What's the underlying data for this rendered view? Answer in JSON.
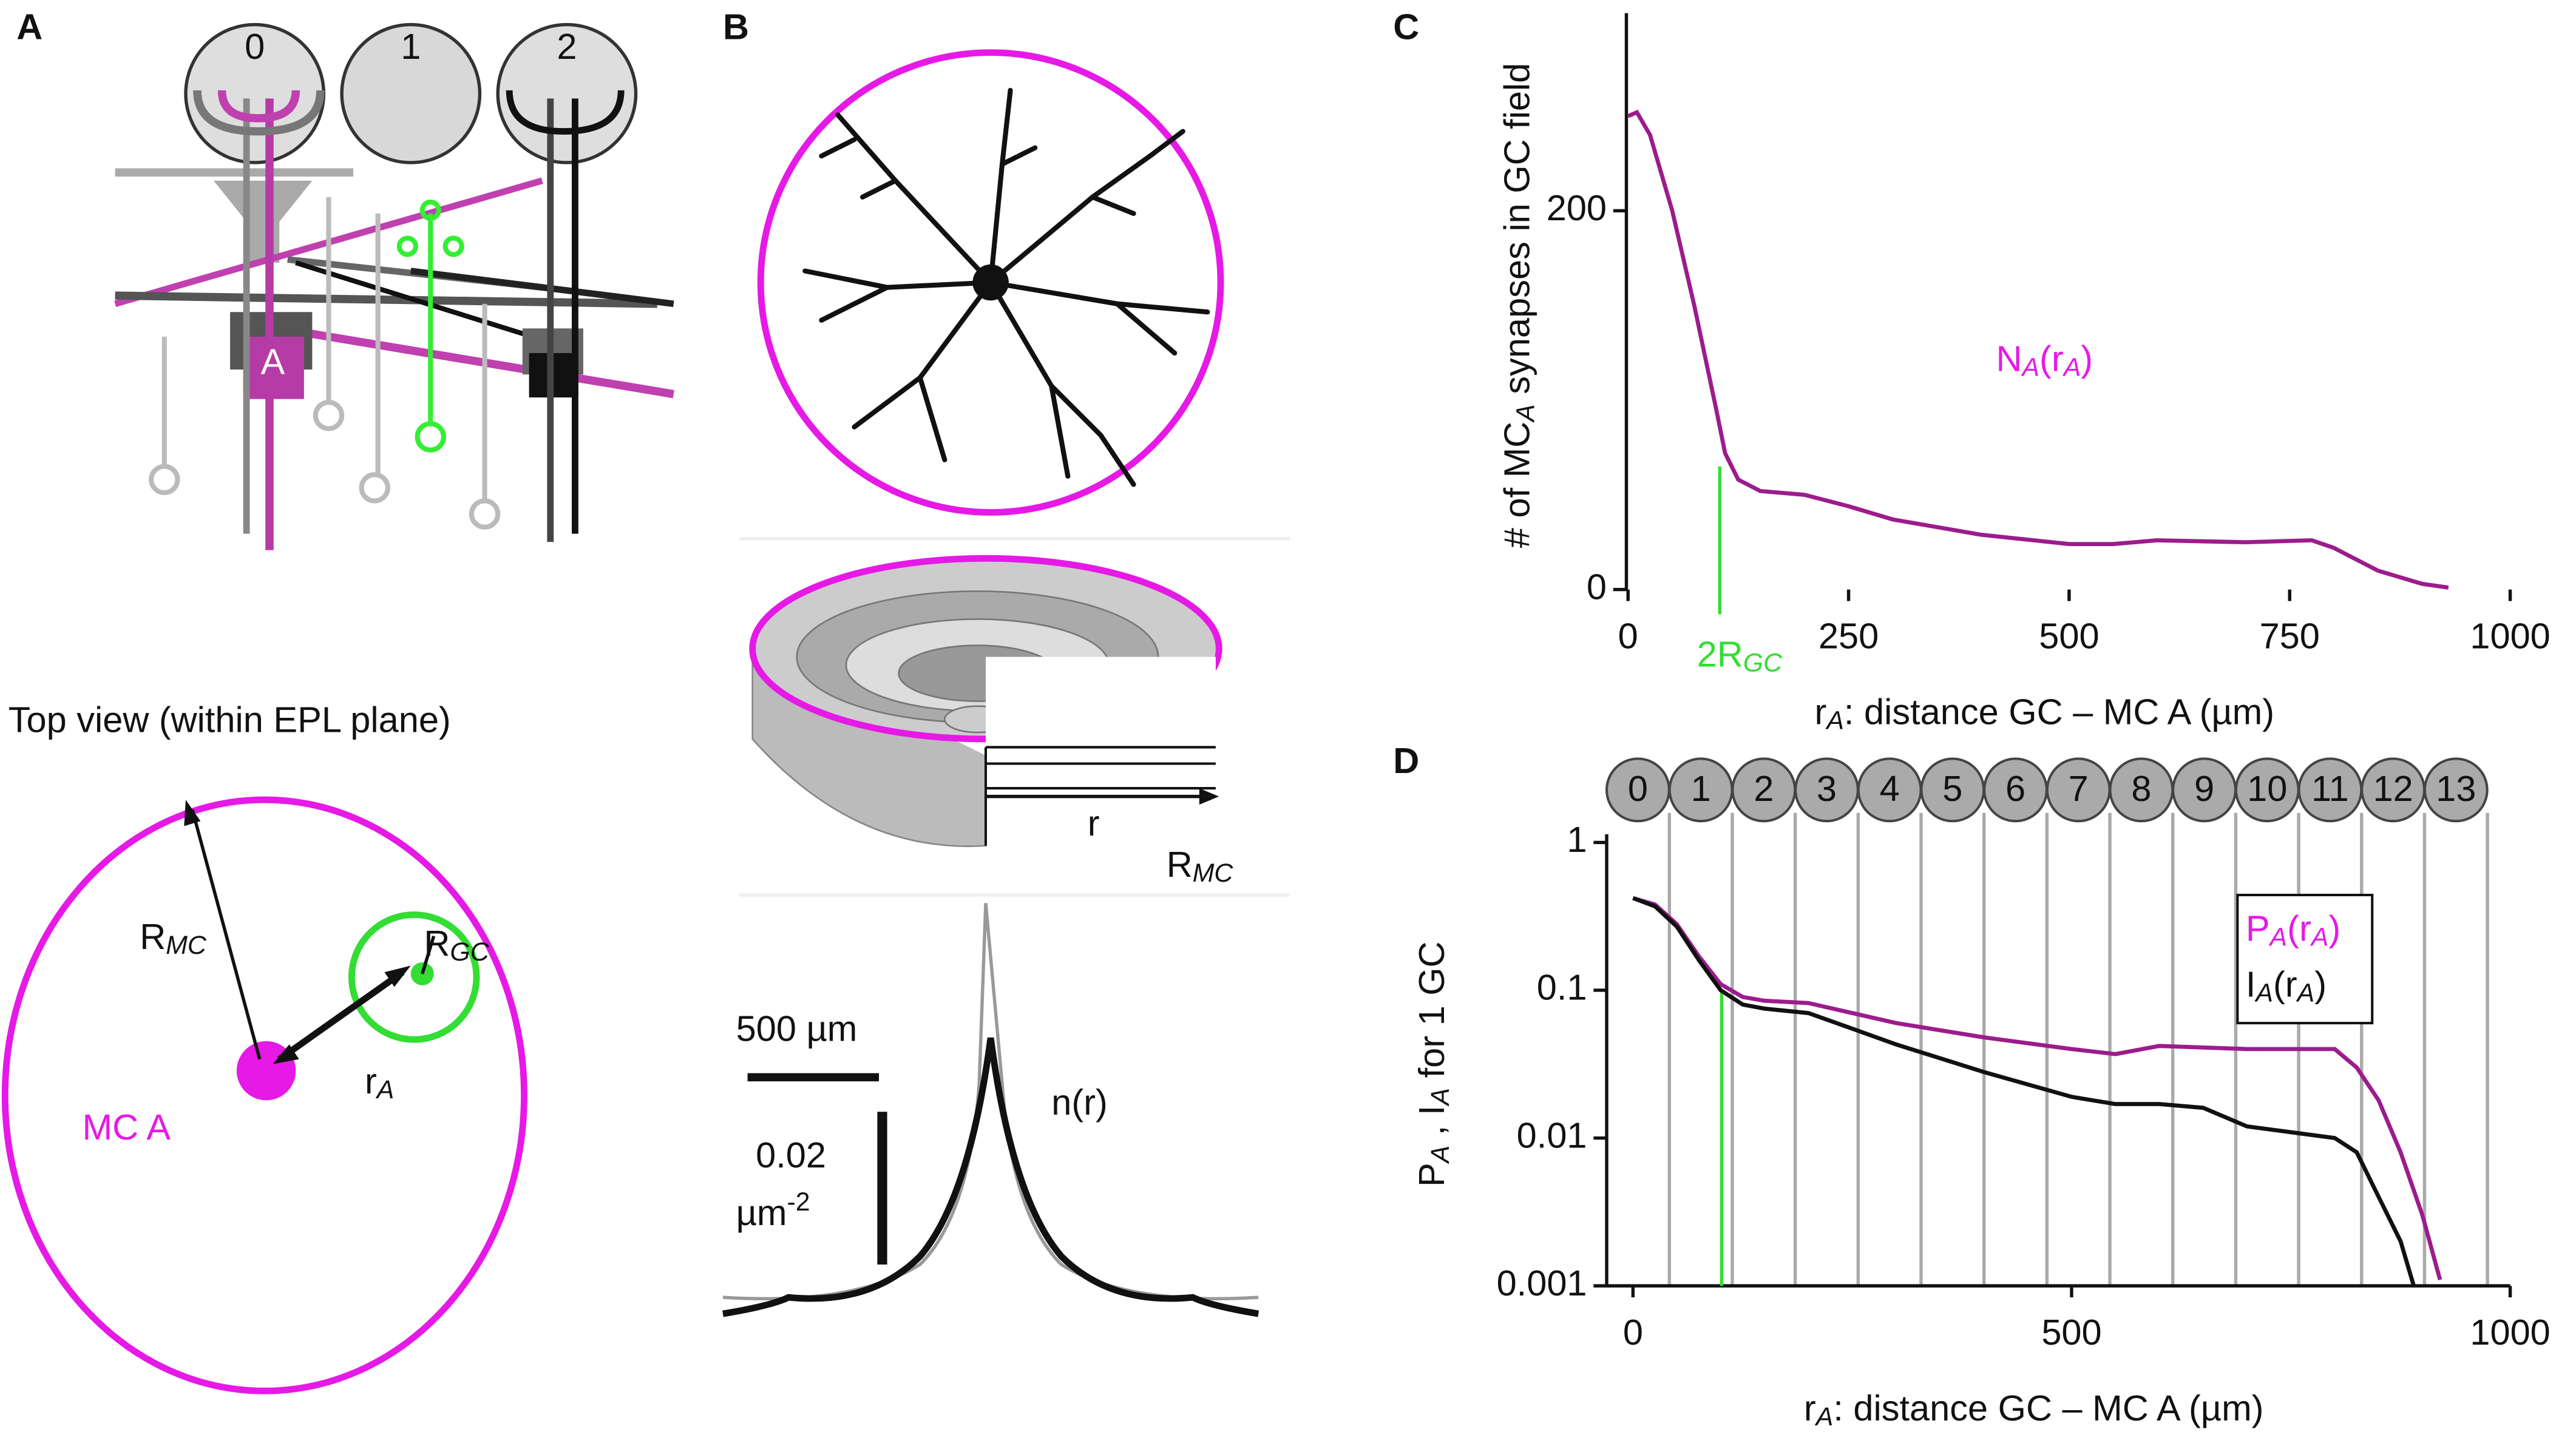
{
  "panel_labels": {
    "a": "A",
    "b": "B",
    "c": "C",
    "d": "D"
  },
  "panel_a": {
    "cells": [
      "0",
      "1",
      "2"
    ],
    "cell_label": "A",
    "top_view_title": "Top view (within EPL plane)",
    "r_mc": [
      "R",
      "MC"
    ],
    "r_gc": [
      "R",
      "GC"
    ],
    "r_a": [
      "r",
      "A"
    ],
    "mc_label": "MC A"
  },
  "panel_b": {
    "r_label": "r",
    "r_mc": [
      "R",
      "MC"
    ],
    "scale_x": "500 µm",
    "scale_y_value": "0.02",
    "scale_y_unit": [
      "µm",
      "-2"
    ],
    "curve_label": "n(r)"
  },
  "chart_data": [
    {
      "type": "line",
      "x_label": [
        "r",
        "A",
        ": distance GC – MC A (µm)"
      ],
      "y_label": [
        "# of MC",
        "A",
        " synapses in GC field"
      ],
      "xlim": [
        0,
        1000
      ],
      "xticks": [
        0,
        250,
        500,
        750,
        1000
      ],
      "ylim": [
        0,
        300
      ],
      "yticks": [
        0,
        200
      ],
      "annotation": {
        "x": 104,
        "text": [
          "2R",
          "GC"
        ],
        "color": "#33dd33"
      },
      "series": [
        {
          "name": [
            "N",
            "A",
            "(r",
            "A",
            ")"
          ],
          "color": "#9c1c8c",
          "label_color": "#e619e6",
          "x": [
            0,
            10,
            25,
            50,
            75,
            100,
            110,
            125,
            150,
            200,
            250,
            300,
            400,
            500,
            550,
            600,
            700,
            775,
            800,
            850,
            900,
            930
          ],
          "values": [
            250,
            252,
            240,
            200,
            150,
            95,
            72,
            58,
            52,
            50,
            44,
            37,
            29,
            24,
            24,
            26,
            25,
            26,
            22,
            10,
            3,
            1
          ]
        }
      ]
    },
    {
      "type": "line",
      "log_y": true,
      "x_label": [
        "r",
        "A",
        ": distance GC – MC A (µm)"
      ],
      "y_label": [
        "P",
        "A",
        " , I",
        "A",
        " for 1 GC"
      ],
      "cells": [
        "0",
        "1",
        "2",
        "3",
        "4",
        "5",
        "6",
        "7",
        "8",
        "9",
        "10",
        "11",
        "12",
        "13"
      ],
      "xlim": [
        -30,
        1000
      ],
      "xticks": [
        0,
        500,
        1000
      ],
      "ylim": [
        0.001,
        1
      ],
      "yticks": [
        1,
        0.1,
        0.01,
        0.001
      ],
      "marker_x": 101,
      "legend": "upper right",
      "series": [
        {
          "name": [
            "P",
            "A",
            "(r",
            "A",
            ")"
          ],
          "color": "#9c1c8c",
          "label_color": "#e619e6",
          "x": [
            0,
            25,
            50,
            75,
            100,
            125,
            150,
            200,
            250,
            300,
            400,
            500,
            550,
            600,
            700,
            750,
            800,
            825,
            850,
            875,
            900,
            920
          ],
          "values": [
            0.42,
            0.38,
            0.28,
            0.17,
            0.11,
            0.09,
            0.085,
            0.082,
            0.07,
            0.06,
            0.048,
            0.04,
            0.037,
            0.042,
            0.04,
            0.04,
            0.04,
            0.03,
            0.018,
            0.008,
            0.003,
            0.0011
          ]
        },
        {
          "name": [
            "I",
            "A",
            "(r",
            "A",
            ")"
          ],
          "color": "#111111",
          "label_color": "#111111",
          "x": [
            0,
            25,
            50,
            75,
            100,
            125,
            150,
            200,
            250,
            300,
            400,
            500,
            550,
            600,
            650,
            700,
            800,
            825,
            850,
            875,
            890
          ],
          "values": [
            0.42,
            0.37,
            0.27,
            0.16,
            0.1,
            0.08,
            0.075,
            0.07,
            0.055,
            0.043,
            0.028,
            0.019,
            0.017,
            0.017,
            0.016,
            0.012,
            0.01,
            0.008,
            0.004,
            0.002,
            0.001
          ]
        }
      ]
    }
  ]
}
